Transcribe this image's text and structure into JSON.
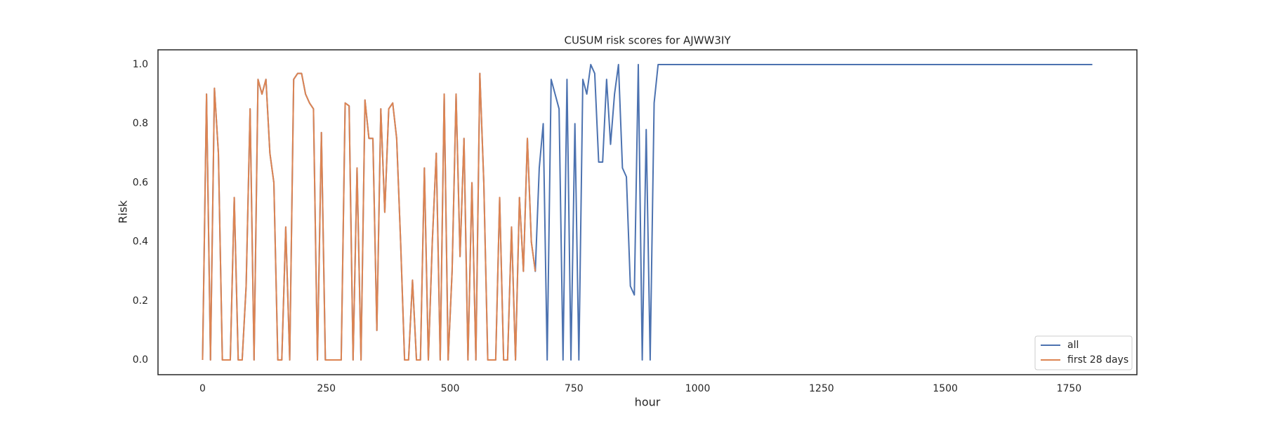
{
  "chart_data": {
    "type": "line",
    "title": "CUSUM risk scores for AJWW3IY",
    "x_label": "hour",
    "y_label": "Risk",
    "x": [
      0,
      8,
      16,
      24,
      32,
      40,
      48,
      56,
      64,
      72,
      80,
      88,
      96,
      104,
      112,
      120,
      128,
      136,
      144,
      152,
      160,
      168,
      176,
      184,
      192,
      200,
      208,
      216,
      224,
      232,
      240,
      248,
      256,
      264,
      272,
      280,
      288,
      296,
      304,
      312,
      320,
      328,
      336,
      344,
      352,
      360,
      368,
      376,
      384,
      392,
      400,
      408,
      416,
      424,
      432,
      440,
      448,
      456,
      464,
      472,
      480,
      488,
      496,
      504,
      512,
      520,
      528,
      536,
      544,
      552,
      560,
      568,
      576,
      584,
      592,
      600,
      608,
      616,
      624,
      632,
      640,
      648,
      656,
      664,
      672,
      680,
      688,
      696,
      704,
      712,
      720,
      728,
      736,
      744,
      752,
      760,
      768,
      776,
      784,
      792,
      800,
      808,
      816,
      824,
      832,
      840,
      848,
      856,
      864,
      872,
      880,
      888,
      896,
      904,
      912,
      920,
      1797
    ],
    "series": [
      {
        "name": "all",
        "color": "#4c72b0",
        "values": [
          0,
          0.9,
          0,
          0.92,
          0.7,
          0,
          0,
          0,
          0.55,
          0,
          0,
          0.25,
          0.85,
          0,
          0.95,
          0.9,
          0.95,
          0.7,
          0.6,
          0,
          0,
          0.45,
          0,
          0.95,
          0.97,
          0.97,
          0.9,
          0.87,
          0.85,
          0,
          0.77,
          0,
          0,
          0,
          0,
          0,
          0.87,
          0.86,
          0,
          0.65,
          0,
          0.88,
          0.75,
          0.75,
          0.1,
          0.85,
          0.5,
          0.85,
          0.87,
          0.75,
          0.4,
          0,
          0,
          0.27,
          0,
          0,
          0.65,
          0,
          0.4,
          0.7,
          0,
          0.9,
          0,
          0.3,
          0.9,
          0.35,
          0.75,
          0,
          0.6,
          0,
          0.97,
          0.6,
          0,
          0,
          0,
          0.55,
          0,
          0,
          0.45,
          0,
          0.55,
          0.3,
          0.75,
          0.4,
          0.3,
          0.65,
          0.8,
          0,
          0.95,
          0.9,
          0.85,
          0,
          0.95,
          0,
          0.8,
          0,
          0.95,
          0.9,
          1.0,
          0.97,
          0.67,
          0.67,
          0.95,
          0.73,
          0.9,
          1.0,
          0.65,
          0.62,
          0.25,
          0.22,
          1.0,
          0,
          0.78,
          0,
          0.87,
          1.0,
          1.0
        ]
      },
      {
        "name": "first 28 days",
        "color": "#dd8452",
        "values": [
          0,
          0.9,
          0,
          0.92,
          0.7,
          0,
          0,
          0,
          0.55,
          0,
          0,
          0.25,
          0.85,
          0,
          0.95,
          0.9,
          0.95,
          0.7,
          0.6,
          0,
          0,
          0.45,
          0,
          0.95,
          0.97,
          0.97,
          0.9,
          0.87,
          0.85,
          0,
          0.77,
          0,
          0,
          0,
          0,
          0,
          0.87,
          0.86,
          0,
          0.65,
          0,
          0.88,
          0.75,
          0.75,
          0.1,
          0.85,
          0.5,
          0.85,
          0.87,
          0.75,
          0.4,
          0,
          0,
          0.27,
          0,
          0,
          0.65,
          0,
          0.4,
          0.7,
          0,
          0.9,
          0,
          0.3,
          0.9,
          0.35,
          0.75,
          0,
          0.6,
          0,
          0.97,
          0.6,
          0,
          0,
          0,
          0.55,
          0,
          0,
          0.45,
          0,
          0.55,
          0.3,
          0.75,
          0.4,
          0.3,
          null,
          null,
          null,
          null,
          null,
          null,
          null,
          null,
          null,
          null,
          null,
          null,
          null,
          null,
          null,
          null,
          null,
          null,
          null,
          null,
          null,
          null,
          null,
          null,
          null,
          null,
          null,
          null,
          null,
          null,
          null,
          null
        ]
      }
    ],
    "xlim": [
      -90,
      1887
    ],
    "ylim": [
      -0.05,
      1.05
    ],
    "xticks": [
      0,
      250,
      500,
      750,
      1000,
      1250,
      1500,
      1750
    ],
    "yticks": [
      {
        "value": 0,
        "label": "0.0"
      },
      {
        "value": 0.2,
        "label": "0.2"
      },
      {
        "value": 0.4,
        "label": "0.4"
      },
      {
        "value": 0.6,
        "label": "0.6"
      },
      {
        "value": 0.8,
        "label": "0.8"
      },
      {
        "value": 1.0,
        "label": "1.0"
      }
    ],
    "grid": false,
    "legend": "lower right"
  }
}
